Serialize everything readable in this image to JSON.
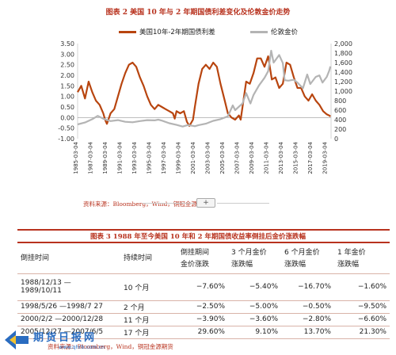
{
  "figure2": {
    "title": "图表 2 美国 10 年与 2 年期国债利差变化及伦敦金价走势",
    "source": "资料来源：Bloomberg，Wind，铜冠金源期货",
    "expand_glyph": "+"
  },
  "chart_data": {
    "type": "line",
    "legend_placement": "top",
    "grid": false,
    "series": [
      {
        "name": "美国10年-2年期国债利差",
        "axis": "left",
        "color": "#b8450f",
        "points": [
          [
            "1985-03",
            1.2
          ],
          [
            "1985-09",
            1.5
          ],
          [
            "1986-03",
            0.9
          ],
          [
            "1986-09",
            1.7
          ],
          [
            "1987-03",
            1.2
          ],
          [
            "1987-09",
            0.8
          ],
          [
            "1988-03",
            0.6
          ],
          [
            "1988-09",
            0.2
          ],
          [
            "1988-12",
            -0.1
          ],
          [
            "1989-03",
            -0.3
          ],
          [
            "1989-09",
            0.2
          ],
          [
            "1990-03",
            0.4
          ],
          [
            "1990-09",
            1.0
          ],
          [
            "1991-03",
            1.6
          ],
          [
            "1991-09",
            2.1
          ],
          [
            "1992-03",
            2.5
          ],
          [
            "1992-09",
            2.6
          ],
          [
            "1993-03",
            2.4
          ],
          [
            "1993-09",
            1.9
          ],
          [
            "1994-03",
            1.5
          ],
          [
            "1994-09",
            1.0
          ],
          [
            "1995-03",
            0.6
          ],
          [
            "1995-09",
            0.4
          ],
          [
            "1996-03",
            0.6
          ],
          [
            "1996-09",
            0.5
          ],
          [
            "1997-03",
            0.4
          ],
          [
            "1997-09",
            0.3
          ],
          [
            "1998-03",
            0.2
          ],
          [
            "1998-06",
            -0.05
          ],
          [
            "1998-09",
            0.3
          ],
          [
            "1999-03",
            0.2
          ],
          [
            "1999-09",
            0.3
          ],
          [
            "2000-02",
            -0.2
          ],
          [
            "2000-06",
            -0.4
          ],
          [
            "2000-12",
            -0.1
          ],
          [
            "2001-03",
            0.5
          ],
          [
            "2001-09",
            1.6
          ],
          [
            "2002-03",
            2.3
          ],
          [
            "2002-09",
            2.5
          ],
          [
            "2003-03",
            2.3
          ],
          [
            "2003-09",
            2.6
          ],
          [
            "2004-03",
            2.4
          ],
          [
            "2004-09",
            1.6
          ],
          [
            "2005-03",
            0.9
          ],
          [
            "2005-09",
            0.2
          ],
          [
            "2006-03",
            0.0
          ],
          [
            "2006-09",
            -0.1
          ],
          [
            "2007-03",
            0.1
          ],
          [
            "2007-06",
            -0.1
          ],
          [
            "2007-09",
            0.5
          ],
          [
            "2008-03",
            1.7
          ],
          [
            "2008-09",
            1.6
          ],
          [
            "2009-03",
            2.1
          ],
          [
            "2009-09",
            2.8
          ],
          [
            "2010-03",
            2.8
          ],
          [
            "2010-09",
            2.4
          ],
          [
            "2011-03",
            2.9
          ],
          [
            "2011-09",
            1.8
          ],
          [
            "2012-03",
            1.9
          ],
          [
            "2012-09",
            1.4
          ],
          [
            "2013-03",
            1.6
          ],
          [
            "2013-09",
            2.6
          ],
          [
            "2014-03",
            2.5
          ],
          [
            "2014-09",
            1.9
          ],
          [
            "2015-03",
            1.4
          ],
          [
            "2015-09",
            1.4
          ],
          [
            "2016-03",
            1.0
          ],
          [
            "2016-09",
            0.8
          ],
          [
            "2017-03",
            1.1
          ],
          [
            "2017-09",
            0.8
          ],
          [
            "2018-03",
            0.6
          ],
          [
            "2018-09",
            0.3
          ],
          [
            "2019-03",
            0.15
          ],
          [
            "2019-07",
            0.1
          ],
          [
            "2019-09",
            0.05
          ]
        ]
      },
      {
        "name": "伦敦金价",
        "axis": "right",
        "color": "#b4b4b4",
        "points": [
          [
            "1985-03",
            300
          ],
          [
            "1986-03",
            340
          ],
          [
            "1987-03",
            410
          ],
          [
            "1987-12",
            480
          ],
          [
            "1988-09",
            420
          ],
          [
            "1989-09",
            370
          ],
          [
            "1990-09",
            390
          ],
          [
            "1991-09",
            355
          ],
          [
            "1992-09",
            345
          ],
          [
            "1993-09",
            370
          ],
          [
            "1994-09",
            390
          ],
          [
            "1995-09",
            385
          ],
          [
            "1996-03",
            400
          ],
          [
            "1996-09",
            380
          ],
          [
            "1997-09",
            325
          ],
          [
            "1998-09",
            290
          ],
          [
            "1999-07",
            255
          ],
          [
            "2000-03",
            285
          ],
          [
            "2000-12",
            270
          ],
          [
            "2001-03",
            262
          ],
          [
            "2001-09",
            285
          ],
          [
            "2002-09",
            315
          ],
          [
            "2003-09",
            375
          ],
          [
            "2004-09",
            410
          ],
          [
            "2005-09",
            470
          ],
          [
            "2006-05",
            700
          ],
          [
            "2006-09",
            600
          ],
          [
            "2007-09",
            740
          ],
          [
            "2008-03",
            960
          ],
          [
            "2008-10",
            740
          ],
          [
            "2009-03",
            920
          ],
          [
            "2009-12",
            1120
          ],
          [
            "2010-09",
            1280
          ],
          [
            "2011-03",
            1420
          ],
          [
            "2011-08",
            1850
          ],
          [
            "2011-12",
            1600
          ],
          [
            "2012-09",
            1760
          ],
          [
            "2013-03",
            1590
          ],
          [
            "2013-06",
            1230
          ],
          [
            "2013-12",
            1220
          ],
          [
            "2014-09",
            1240
          ],
          [
            "2015-03",
            1180
          ],
          [
            "2015-12",
            1060
          ],
          [
            "2016-07",
            1350
          ],
          [
            "2016-12",
            1150
          ],
          [
            "2017-09",
            1300
          ],
          [
            "2018-03",
            1330
          ],
          [
            "2018-08",
            1180
          ],
          [
            "2019-03",
            1300
          ],
          [
            "2019-07",
            1430
          ],
          [
            "2019-09",
            1520
          ]
        ]
      }
    ],
    "y_left": {
      "min": -1.0,
      "max": 3.5,
      "ticks": [
        "3.50",
        "3.00",
        "2.50",
        "2.00",
        "1.50",
        "1.00",
        "0.50",
        "0.00",
        "-0.50",
        "-1.00"
      ]
    },
    "y_right": {
      "min": 0,
      "max": 2000,
      "ticks": [
        "2,000",
        "1,800",
        "1,600",
        "1,400",
        "1,200",
        "1,000",
        "800",
        "600",
        "400",
        "200",
        "0"
      ]
    },
    "x_ticks": [
      "1985-03-04",
      "1987-03-04",
      "1989-03-04",
      "1991-03-04",
      "1993-03-04",
      "1995-03-04",
      "1997-03-04",
      "1999-03-04",
      "2001-03-04",
      "2003-03-04",
      "2005-03-04",
      "2007-03-04",
      "2009-03-04",
      "2011-03-04",
      "2013-03-04",
      "2015-03-04",
      "2017-03-04",
      "2019-03-04"
    ],
    "x_range": [
      "1985-03",
      "2019-10"
    ]
  },
  "figure3": {
    "title": "图表 3 1988 年至今美国 10 年和 2 年期国债收益率倒挂后金价涨跌幅",
    "headers": [
      "倒挂时间",
      "持续时间",
      "倒挂期间\n金价涨跌",
      "3 个月金价\n涨跌幅",
      "6 个月金价\n涨跌幅",
      "1 年金价\n涨跌幅"
    ],
    "rows": [
      {
        "period": "1988/12/13 —\n1989/10/11",
        "duration": "10 个月",
        "during": "−7.60%",
        "m3": "−5.40%",
        "m6": "−16.70%",
        "y1": "−1.60%"
      },
      {
        "period": "1998/5/26 —1998/7 27",
        "duration": "2 个月",
        "during": "−2.50%",
        "m3": "−5.00%",
        "m6": "−0.50%",
        "y1": "−9.50%"
      },
      {
        "period": "2000/2/2 —2000/12/28",
        "duration": "11 个月",
        "during": "−3.90%",
        "m3": "−3.60%",
        "m6": "−2.80%",
        "y1": "−6.60%"
      },
      {
        "period": "2005/12/27 —2007/6/5",
        "duration": "17 个月",
        "during": "29.60%",
        "m3": "9.10%",
        "m6": "13.70%",
        "y1": "21.30%"
      }
    ],
    "source": "资料来源：Bloomberg，Wind，铜冠金源期货"
  },
  "watermark": {
    "name": "期货日报网",
    "url": "www.qhrb.com.cn"
  }
}
